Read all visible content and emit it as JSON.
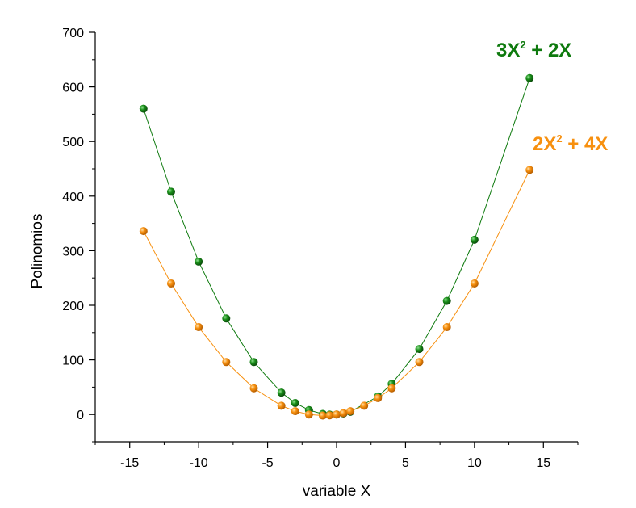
{
  "chart_data": {
    "type": "line",
    "xlabel": "variable X",
    "ylabel": "Polinomios",
    "xlim": [
      -17.5,
      17.5
    ],
    "ylim": [
      -50,
      700
    ],
    "xticks": [
      -15,
      -10,
      -5,
      0,
      5,
      10,
      15
    ],
    "yticks": [
      0,
      100,
      200,
      300,
      400,
      500,
      600,
      700
    ],
    "grid": false,
    "series": [
      {
        "name": "3X² + 2X",
        "label_parts": {
          "base": "3X",
          "exp": "2",
          "rest": " + 2X"
        },
        "color": "#0e7a0e",
        "x": [
          -14,
          -12,
          -10,
          -8,
          -6,
          -4,
          -3,
          -2,
          -1,
          -0.5,
          0,
          0.5,
          1,
          3,
          4,
          6,
          8,
          10,
          14
        ],
        "y": [
          560,
          408,
          280,
          176,
          96,
          40,
          21,
          8,
          1,
          -0.25,
          0,
          1.75,
          5,
          33,
          56,
          120,
          208,
          320,
          616
        ]
      },
      {
        "name": "2X² + 4X",
        "label_parts": {
          "base": "2X",
          "exp": "2",
          "rest": " + 4X"
        },
        "color": "#f7900f",
        "x": [
          -14,
          -12,
          -10,
          -8,
          -6,
          -4,
          -3,
          -2,
          -1,
          -0.5,
          0,
          0.5,
          1,
          2,
          3,
          4,
          6,
          8,
          10,
          14
        ],
        "y": [
          336,
          240,
          160,
          96,
          48,
          16,
          6,
          0,
          -2,
          -1.5,
          0,
          2.5,
          6,
          16,
          30,
          48,
          96,
          160,
          240,
          448
        ]
      }
    ]
  }
}
